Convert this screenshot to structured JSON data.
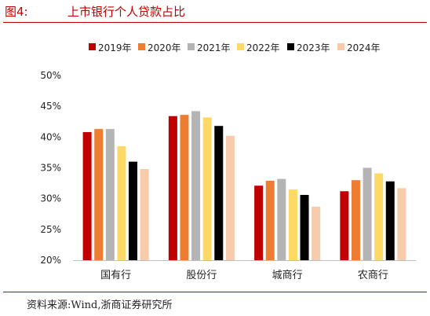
{
  "header": {
    "figure_label": "图4:",
    "title": "上市银行个人贷款占比"
  },
  "source": "资料来源:Wind,浙商证券研究所",
  "chart_data": {
    "type": "bar",
    "title": "上市银行个人贷款占比",
    "categories": [
      "国有行",
      "股份行",
      "城商行",
      "农商行"
    ],
    "series": [
      {
        "name": "2019年",
        "color": "#c00000",
        "values": [
          40.8,
          43.4,
          32.1,
          31.2
        ]
      },
      {
        "name": "2020年",
        "color": "#ed7d31",
        "values": [
          41.3,
          43.6,
          32.9,
          33.0
        ]
      },
      {
        "name": "2021年",
        "color": "#b4b4b4",
        "values": [
          41.3,
          44.2,
          33.2,
          35.0
        ]
      },
      {
        "name": "2022年",
        "color": "#ffd966",
        "values": [
          38.5,
          43.2,
          31.5,
          34.1
        ]
      },
      {
        "name": "2023年",
        "color": "#000000",
        "values": [
          36.0,
          41.8,
          30.6,
          32.8
        ]
      },
      {
        "name": "2024年",
        "color": "#f8cbad",
        "values": [
          34.8,
          40.2,
          28.7,
          31.7
        ]
      }
    ],
    "yticks": [
      "20%",
      "25%",
      "30%",
      "35%",
      "40%",
      "45%",
      "50%"
    ],
    "ylim": [
      20,
      50
    ],
    "xlabel": "",
    "ylabel": "",
    "legend_position": "top",
    "grid": false
  }
}
